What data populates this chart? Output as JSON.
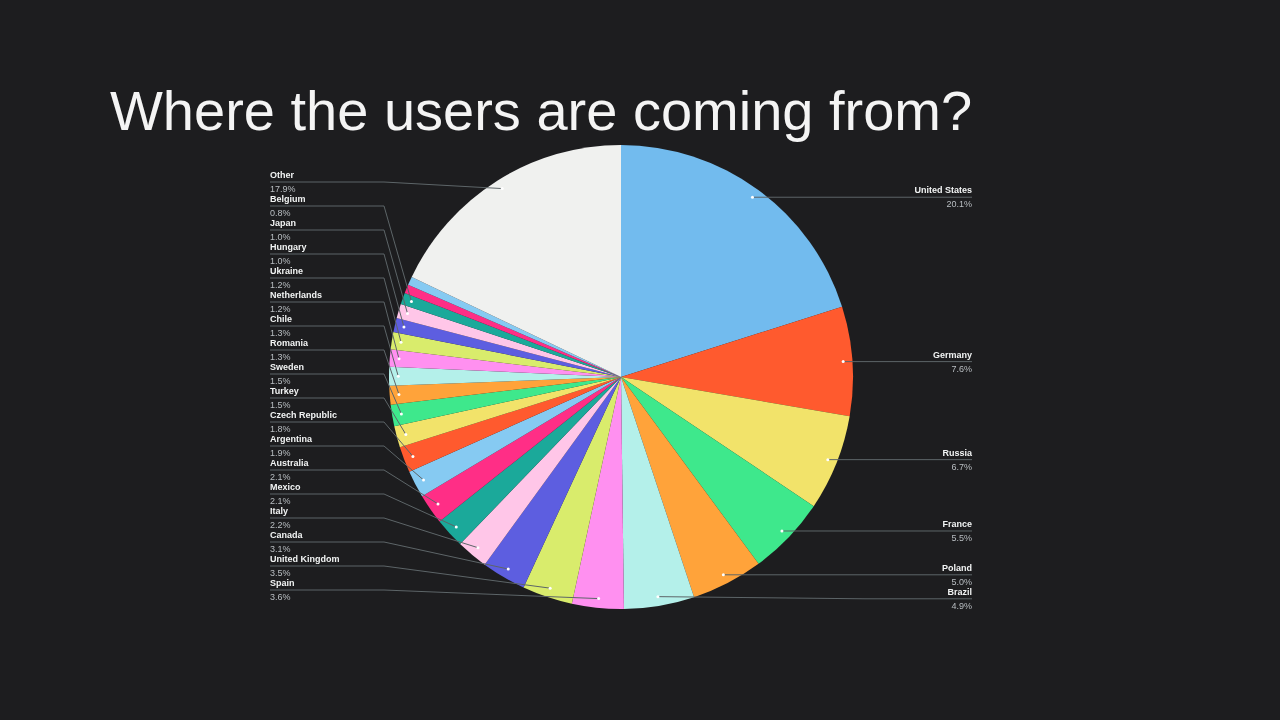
{
  "chart_data": {
    "type": "pie",
    "title": "Where the users are coming from?",
    "categories": [
      "United States",
      "Germany",
      "Russia",
      "France",
      "Poland",
      "Brazil",
      "Spain",
      "United Kingdom",
      "Canada",
      "Italy",
      "Mexico",
      "Australia",
      "Argentina",
      "Czech Republic",
      "Turkey",
      "Sweden",
      "Romania",
      "Chile",
      "Netherlands",
      "Ukraine",
      "Hungary",
      "Japan",
      "Belgium",
      null,
      null,
      "Other"
    ],
    "values": [
      20.1,
      7.6,
      6.7,
      5.5,
      5.0,
      4.9,
      3.6,
      3.5,
      3.1,
      2.2,
      2.1,
      2.1,
      1.9,
      1.8,
      1.5,
      1.5,
      1.3,
      1.3,
      1.2,
      1.2,
      1.0,
      1.0,
      0.8,
      0.6,
      0.6,
      17.9
    ],
    "value_labels": [
      "20.1%",
      "7.6%",
      "6.7%",
      "5.5%",
      "5.0%",
      "4.9%",
      "3.6%",
      "3.5%",
      "3.1%",
      "2.2%",
      "2.1%",
      "2.1%",
      "1.9%",
      "1.8%",
      "1.5%",
      "1.5%",
      "1.3%",
      "1.3%",
      "1.2%",
      "1.2%",
      "1.0%",
      "1.0%",
      "0.8%",
      null,
      null,
      "17.9%"
    ],
    "colors": [
      "#72bbee",
      "#ff5a2e",
      "#f2e36a",
      "#3ee88c",
      "#ffa33a",
      "#b4f0ea",
      "#ff90f0",
      "#d9ec6c",
      "#5d5ee0",
      "#ffc6e8",
      "#1ba99a",
      "#ff2e86",
      "#86caf2",
      "#ff5a2e",
      "#f2e36a",
      "#3ee88c",
      "#ffa33a",
      "#b4f0ea",
      "#ff90f0",
      "#d9ec6c",
      "#5d5ee0",
      "#ffc6e8",
      "#1ba99a",
      "#ff2e86",
      "#86caf2",
      "#f0f1ef"
    ]
  }
}
